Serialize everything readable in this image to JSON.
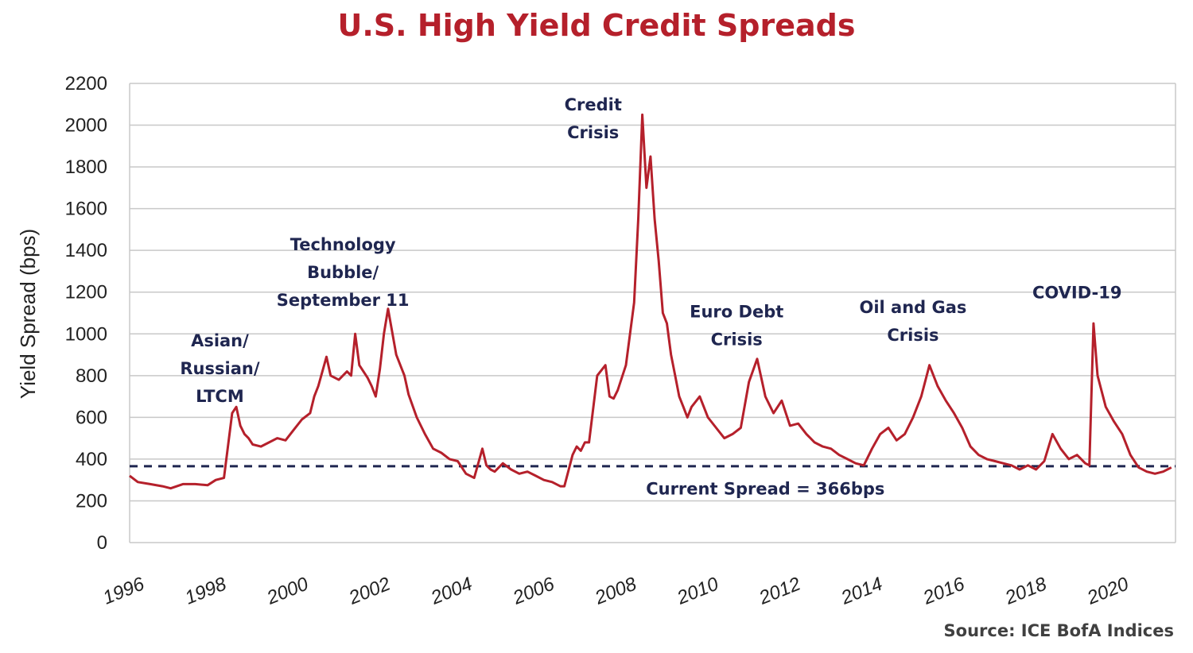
{
  "chart_data": {
    "type": "line",
    "title": "U.S. High Yield Credit Spreads",
    "ylabel": "Yield Spread (bps)",
    "xlabel": "",
    "source": "Source: ICE BofA Indices",
    "ylim": [
      0,
      2200
    ],
    "xlim": [
      1996,
      2021.5
    ],
    "yticks": [
      "0",
      "200",
      "400",
      "600",
      "800",
      "1000",
      "1200",
      "1400",
      "1600",
      "1800",
      "2000",
      "2200"
    ],
    "xticks": [
      "1996",
      "1998",
      "2000",
      "2002",
      "2004",
      "2006",
      "2008",
      "2010",
      "2012",
      "2014",
      "2016",
      "2018",
      "2020"
    ],
    "grid": true,
    "line_color": "#b5202b",
    "reference_color": "#1f2650",
    "series": [
      {
        "x": [
          1996.0,
          1996.2,
          1996.5,
          1996.8,
          1997.0,
          1997.3,
          1997.6,
          1997.9,
          1998.1,
          1998.3,
          1998.5,
          1998.6,
          1998.7,
          1998.8,
          1998.9,
          1999.0,
          1999.2,
          1999.4,
          1999.6,
          1999.8,
          2000.0,
          2000.2,
          2000.4,
          2000.5,
          2000.6,
          2000.8,
          2000.9,
          2001.1,
          2001.3,
          2001.4,
          2001.5,
          2001.6,
          2001.8,
          2001.9,
          2002.0,
          2002.1,
          2002.2,
          2002.3,
          2002.5,
          2002.7,
          2002.8,
          2003.0,
          2003.2,
          2003.4,
          2003.6,
          2003.8,
          2004.0,
          2004.2,
          2004.4,
          2004.6,
          2004.7,
          2004.8,
          2004.9,
          2005.1,
          2005.3,
          2005.5,
          2005.7,
          2005.9,
          2006.1,
          2006.3,
          2006.5,
          2006.6,
          2006.8,
          2006.9,
          2007.0,
          2007.1,
          2007.2,
          2007.4,
          2007.6,
          2007.7,
          2007.8,
          2007.9,
          2008.1,
          2008.3,
          2008.4,
          2008.5,
          2008.6,
          2008.7,
          2008.8,
          2008.9,
          2009.0,
          2009.1,
          2009.2,
          2009.3,
          2009.4,
          2009.5,
          2009.6,
          2009.7,
          2009.9,
          2010.1,
          2010.3,
          2010.5,
          2010.7,
          2010.9,
          2011.1,
          2011.3,
          2011.5,
          2011.7,
          2011.9,
          2012.1,
          2012.3,
          2012.5,
          2012.7,
          2012.9,
          2013.1,
          2013.3,
          2013.5,
          2013.7,
          2013.9,
          2014.1,
          2014.3,
          2014.5,
          2014.7,
          2014.9,
          2015.1,
          2015.3,
          2015.5,
          2015.7,
          2015.9,
          2016.1,
          2016.3,
          2016.5,
          2016.7,
          2016.9,
          2017.1,
          2017.3,
          2017.5,
          2017.7,
          2017.9,
          2018.1,
          2018.3,
          2018.5,
          2018.7,
          2018.9,
          2019.1,
          2019.2,
          2019.3,
          2019.4,
          2019.5,
          2019.6,
          2019.8,
          2020.0,
          2020.2,
          2020.4,
          2020.6,
          2020.8,
          2021.0,
          2021.2,
          2021.4
        ],
        "y": [
          320,
          290,
          280,
          270,
          260,
          280,
          280,
          275,
          300,
          310,
          620,
          650,
          560,
          520,
          500,
          470,
          460,
          480,
          500,
          490,
          540,
          590,
          620,
          700,
          750,
          890,
          800,
          780,
          820,
          800,
          1000,
          850,
          790,
          750,
          700,
          830,
          1000,
          1120,
          900,
          800,
          710,
          600,
          520,
          450,
          430,
          400,
          390,
          330,
          310,
          450,
          370,
          350,
          340,
          380,
          350,
          330,
          340,
          320,
          300,
          290,
          270,
          270,
          420,
          460,
          440,
          480,
          480,
          800,
          850,
          700,
          690,
          730,
          850,
          1150,
          1550,
          2050,
          1700,
          1850,
          1550,
          1350,
          1100,
          1050,
          900,
          800,
          700,
          650,
          600,
          650,
          700,
          600,
          550,
          500,
          520,
          550,
          770,
          880,
          700,
          620,
          680,
          560,
          570,
          520,
          480,
          460,
          450,
          420,
          400,
          380,
          370,
          450,
          520,
          550,
          490,
          520,
          600,
          700,
          850,
          750,
          680,
          620,
          550,
          460,
          420,
          400,
          390,
          380,
          370,
          350,
          370,
          350,
          390,
          520,
          450,
          400,
          420,
          400,
          380,
          370,
          1050,
          800,
          650,
          580,
          520,
          420,
          360,
          340,
          330,
          340,
          360
        ]
      },
      {
        "name": "Current Spread = 366bps",
        "value": 366
      }
    ],
    "annotations": [
      {
        "lines": [
          "Asian/",
          "Russian/",
          "LTCM"
        ],
        "x": 1998.2,
        "y": 940
      },
      {
        "lines": [
          "Technology",
          "Bubble/",
          "September 11"
        ],
        "x": 2001.2,
        "y": 1400
      },
      {
        "lines": [
          "Credit",
          "Crisis"
        ],
        "x": 2007.3,
        "y": 2070
      },
      {
        "lines": [
          "Euro Debt",
          "Crisis"
        ],
        "x": 2010.8,
        "y": 1080
      },
      {
        "lines": [
          "Oil and Gas",
          "Crisis"
        ],
        "x": 2015.1,
        "y": 1100
      },
      {
        "lines": [
          "COVID-19"
        ],
        "x": 2019.1,
        "y": 1170
      },
      {
        "lines": [
          "Current Spread = 366bps"
        ],
        "x": 2011.5,
        "y": 230
      }
    ]
  }
}
